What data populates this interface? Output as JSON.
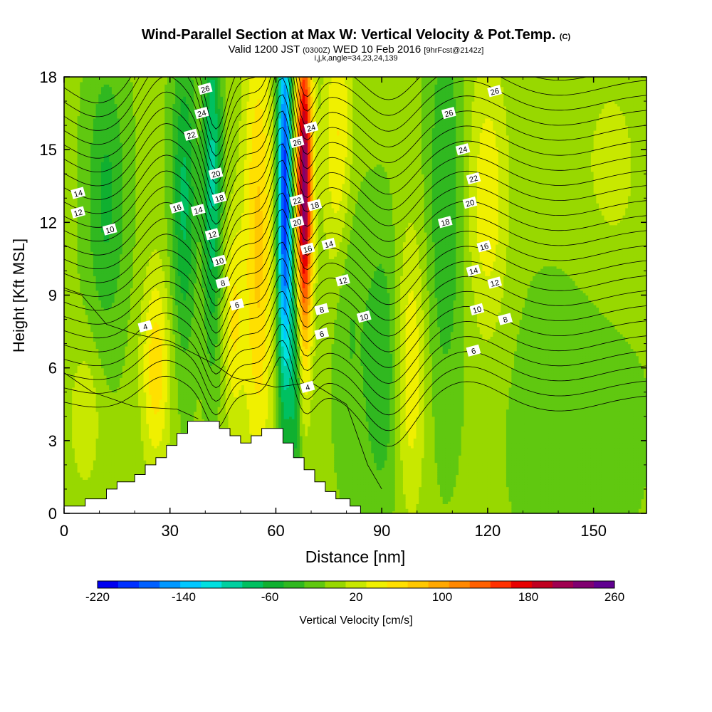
{
  "header": {
    "title": "Wind-Parallel Section at Max W: Vertical Velocity & Pot.Temp.",
    "title_suffix": "(C)",
    "valid_main": "Valid 1200 JST",
    "valid_z": "(0300Z)",
    "valid_date": "WED 10 Feb 2016",
    "fcst": "[9hrFcst@2142z]",
    "ijk": "i,j,k,angle=34,23,24,139"
  },
  "chart_data": {
    "type": "heatmap",
    "xlabel": "Distance [nm]",
    "ylabel": "Height [Kft MSL]",
    "xlim": [
      0,
      165
    ],
    "ylim": [
      0,
      18
    ],
    "x_ticks": [
      0,
      30,
      60,
      90,
      120,
      150
    ],
    "y_ticks": [
      0,
      3,
      6,
      9,
      12,
      15,
      18
    ],
    "colorbar": {
      "label": "Vertical Velocity [cm/s]",
      "tick_labels": [
        -220,
        -140,
        -60,
        20,
        100,
        180,
        260
      ],
      "levels": [
        -220,
        -200,
        -180,
        -160,
        -140,
        -120,
        -100,
        -80,
        -60,
        -40,
        -20,
        0,
        20,
        40,
        60,
        80,
        100,
        120,
        140,
        160,
        180,
        200,
        220,
        240,
        260
      ],
      "colors": [
        "#0000f0",
        "#0030ff",
        "#0060ff",
        "#0098ff",
        "#00c8ff",
        "#00e0e0",
        "#00d0a0",
        "#00c060",
        "#10b030",
        "#30b820",
        "#60c810",
        "#98d800",
        "#c8e800",
        "#f0f000",
        "#ffe000",
        "#ffc800",
        "#ffa800",
        "#ff8800",
        "#ff6000",
        "#ff3000",
        "#e80000",
        "#c00020",
        "#a00050",
        "#800070",
        "#600090"
      ]
    },
    "theta_contour_labels": [
      {
        "x": 13,
        "y": 11.7,
        "label": "10"
      },
      {
        "x": 4,
        "y": 12.4,
        "label": "12"
      },
      {
        "x": 4,
        "y": 13.2,
        "label": "14"
      },
      {
        "x": 32,
        "y": 12.6,
        "label": "16"
      },
      {
        "x": 38,
        "y": 12.5,
        "label": "14"
      },
      {
        "x": 36,
        "y": 15.6,
        "label": "22"
      },
      {
        "x": 39,
        "y": 16.5,
        "label": "24"
      },
      {
        "x": 40,
        "y": 17.5,
        "label": "26"
      },
      {
        "x": 43,
        "y": 14.0,
        "label": "20"
      },
      {
        "x": 44,
        "y": 13.0,
        "label": "18"
      },
      {
        "x": 42,
        "y": 11.5,
        "label": "12"
      },
      {
        "x": 44,
        "y": 10.4,
        "label": "10"
      },
      {
        "x": 45,
        "y": 9.5,
        "label": "8"
      },
      {
        "x": 49,
        "y": 8.6,
        "label": "6"
      },
      {
        "x": 23,
        "y": 7.7,
        "label": "4"
      },
      {
        "x": 66,
        "y": 15.3,
        "label": "26"
      },
      {
        "x": 70,
        "y": 15.9,
        "label": "24"
      },
      {
        "x": 66,
        "y": 12.9,
        "label": "22"
      },
      {
        "x": 71,
        "y": 12.7,
        "label": "18"
      },
      {
        "x": 66,
        "y": 12.0,
        "label": "20"
      },
      {
        "x": 69,
        "y": 10.9,
        "label": "16"
      },
      {
        "x": 75,
        "y": 11.1,
        "label": "14"
      },
      {
        "x": 79,
        "y": 9.6,
        "label": "12"
      },
      {
        "x": 85,
        "y": 8.1,
        "label": "10"
      },
      {
        "x": 73,
        "y": 8.4,
        "label": "8"
      },
      {
        "x": 73,
        "y": 7.4,
        "label": "6"
      },
      {
        "x": 69,
        "y": 5.2,
        "label": "4"
      },
      {
        "x": 122,
        "y": 17.4,
        "label": "26"
      },
      {
        "x": 109,
        "y": 16.5,
        "label": "26"
      },
      {
        "x": 113,
        "y": 15.0,
        "label": "24"
      },
      {
        "x": 116,
        "y": 13.8,
        "label": "22"
      },
      {
        "x": 115,
        "y": 12.8,
        "label": "20"
      },
      {
        "x": 108,
        "y": 12.0,
        "label": "18"
      },
      {
        "x": 119,
        "y": 11.0,
        "label": "16"
      },
      {
        "x": 116,
        "y": 10.0,
        "label": "14"
      },
      {
        "x": 122,
        "y": 9.5,
        "label": "12"
      },
      {
        "x": 117,
        "y": 8.4,
        "label": "10"
      },
      {
        "x": 125,
        "y": 8.0,
        "label": "8"
      },
      {
        "x": 116,
        "y": 6.7,
        "label": "6"
      }
    ],
    "terrain_height_kft": [
      {
        "x": 0,
        "y": 0.3
      },
      {
        "x": 6,
        "y": 0.3
      },
      {
        "x": 6,
        "y": 0.6
      },
      {
        "x": 12,
        "y": 0.6
      },
      {
        "x": 12,
        "y": 1.0
      },
      {
        "x": 15,
        "y": 1.0
      },
      {
        "x": 15,
        "y": 1.3
      },
      {
        "x": 20,
        "y": 1.3
      },
      {
        "x": 20,
        "y": 1.6
      },
      {
        "x": 23,
        "y": 1.6
      },
      {
        "x": 23,
        "y": 2.0
      },
      {
        "x": 26,
        "y": 2.0
      },
      {
        "x": 26,
        "y": 2.3
      },
      {
        "x": 29,
        "y": 2.3
      },
      {
        "x": 29,
        "y": 2.8
      },
      {
        "x": 32,
        "y": 2.8
      },
      {
        "x": 32,
        "y": 3.3
      },
      {
        "x": 35,
        "y": 3.3
      },
      {
        "x": 35,
        "y": 3.8
      },
      {
        "x": 44,
        "y": 3.8
      },
      {
        "x": 44,
        "y": 3.5
      },
      {
        "x": 47,
        "y": 3.5
      },
      {
        "x": 47,
        "y": 3.2
      },
      {
        "x": 50,
        "y": 3.2
      },
      {
        "x": 50,
        "y": 2.9
      },
      {
        "x": 53,
        "y": 2.9
      },
      {
        "x": 53,
        "y": 3.2
      },
      {
        "x": 56,
        "y": 3.2
      },
      {
        "x": 56,
        "y": 3.5
      },
      {
        "x": 62,
        "y": 3.5
      },
      {
        "x": 62,
        "y": 2.9
      },
      {
        "x": 65,
        "y": 2.9
      },
      {
        "x": 65,
        "y": 2.3
      },
      {
        "x": 68,
        "y": 2.3
      },
      {
        "x": 68,
        "y": 1.8
      },
      {
        "x": 71,
        "y": 1.8
      },
      {
        "x": 71,
        "y": 1.3
      },
      {
        "x": 74,
        "y": 1.3
      },
      {
        "x": 74,
        "y": 0.9
      },
      {
        "x": 77,
        "y": 0.9
      },
      {
        "x": 77,
        "y": 0.6
      },
      {
        "x": 81,
        "y": 0.6
      },
      {
        "x": 81,
        "y": 0.3
      },
      {
        "x": 84,
        "y": 0.3
      },
      {
        "x": 84,
        "y": 0
      }
    ]
  }
}
